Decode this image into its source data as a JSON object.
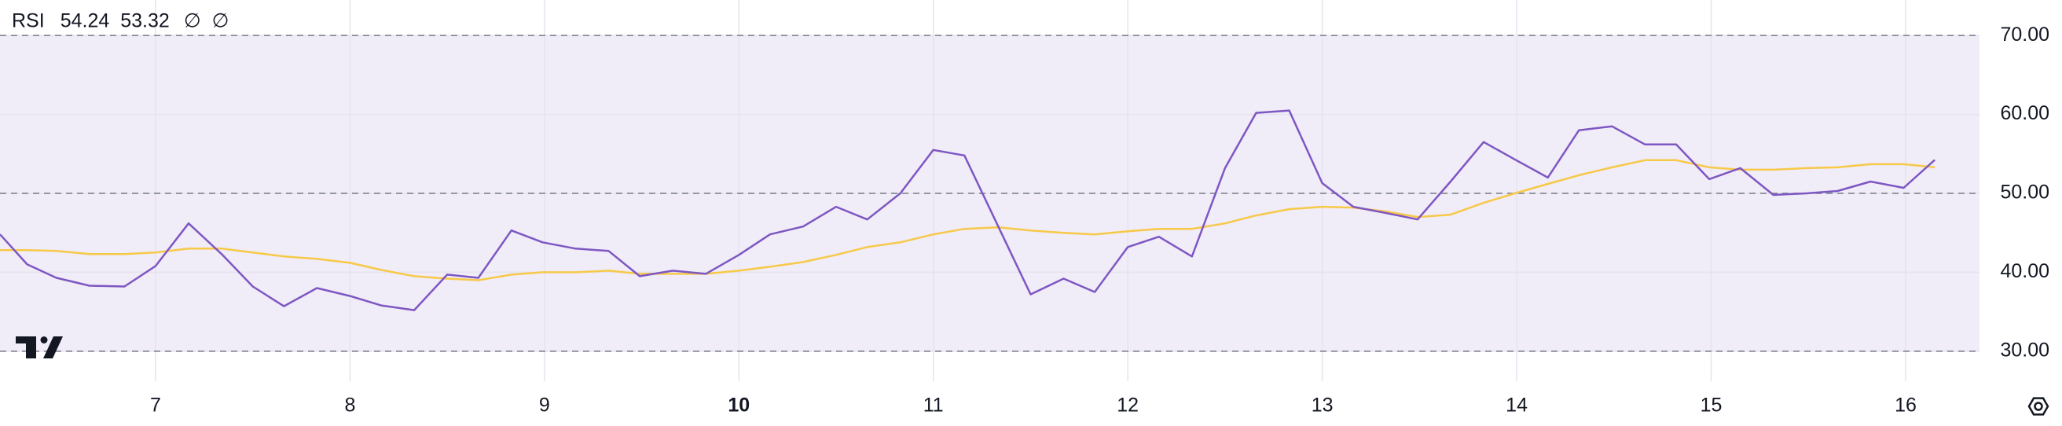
{
  "chart_data": {
    "type": "line",
    "title": "RSI",
    "indicators": [
      "∅",
      "∅"
    ],
    "x": [
      6.2,
      6.34,
      6.49,
      6.66,
      6.84,
      7.0,
      7.17,
      7.34,
      7.5,
      7.66,
      7.83,
      8.0,
      8.16,
      8.33,
      8.5,
      8.66,
      8.83,
      8.99,
      9.16,
      9.33,
      9.49,
      9.66,
      9.83,
      10.0,
      10.16,
      10.33,
      10.5,
      10.66,
      10.83,
      11.0,
      11.16,
      11.33,
      11.5,
      11.67,
      11.83,
      12.0,
      12.16,
      12.33,
      12.5,
      12.66,
      12.83,
      13.0,
      13.16,
      13.33,
      13.49,
      13.66,
      13.83,
      13.99,
      14.16,
      14.32,
      14.49,
      14.66,
      14.82,
      14.99,
      15.15,
      15.32,
      15.49,
      15.65,
      15.82,
      15.99,
      16.15
    ],
    "series": [
      {
        "color": "#7e57c2",
        "values": [
          44.8,
          41.0,
          39.3,
          38.3,
          38.2,
          40.8,
          46.2,
          42.3,
          38.2,
          35.7,
          38.0,
          37.0,
          35.8,
          35.2,
          39.7,
          39.3,
          45.3,
          43.8,
          43.0,
          42.7,
          39.5,
          40.2,
          39.8,
          42.2,
          44.8,
          45.8,
          48.3,
          46.7,
          50.0,
          55.5,
          54.8,
          46.0,
          37.2,
          39.2,
          37.5,
          43.2,
          44.5,
          42.0,
          53.2,
          60.2,
          60.5,
          51.3,
          48.3,
          47.5,
          46.7,
          51.5,
          56.5,
          54.3,
          52.0,
          58.0,
          58.5,
          56.2,
          56.2,
          51.8,
          53.2,
          49.8,
          50.0,
          50.3,
          51.5,
          50.7,
          54.24
        ]
      },
      {
        "color": "#f7c948",
        "values": [
          42.8,
          42.8,
          42.7,
          42.3,
          42.3,
          42.5,
          43.0,
          43.0,
          42.5,
          42.0,
          41.7,
          41.2,
          40.3,
          39.5,
          39.2,
          39.0,
          39.7,
          40.0,
          40.0,
          40.2,
          39.8,
          39.8,
          39.8,
          40.2,
          40.7,
          41.3,
          42.2,
          43.2,
          43.8,
          44.8,
          45.5,
          45.7,
          45.3,
          45.0,
          44.8,
          45.2,
          45.5,
          45.5,
          46.2,
          47.2,
          48.0,
          48.3,
          48.2,
          47.7,
          47.0,
          47.3,
          48.8,
          50.0,
          51.2,
          52.3,
          53.3,
          54.2,
          54.2,
          53.3,
          53.0,
          53.0,
          53.2,
          53.3,
          53.7,
          53.7,
          53.32
        ]
      }
    ],
    "xlim": [
      6.2,
      16.38
    ],
    "xticks": [
      7,
      8,
      9,
      10,
      11,
      12,
      13,
      14,
      15,
      16
    ],
    "xtick_bold": [
      10
    ],
    "ylim": [
      26.2,
      74.5
    ],
    "yticks": [
      {
        "value": 30,
        "label": "30.00"
      },
      {
        "value": 40,
        "label": "40.00"
      },
      {
        "value": 50,
        "label": "50.00"
      },
      {
        "value": 60,
        "label": "60.00"
      },
      {
        "value": 70,
        "label": "70.00"
      }
    ],
    "band": {
      "upper": 70,
      "middle": 50,
      "lower": 30,
      "color": "#f0ecf8"
    },
    "grid": true
  }
}
